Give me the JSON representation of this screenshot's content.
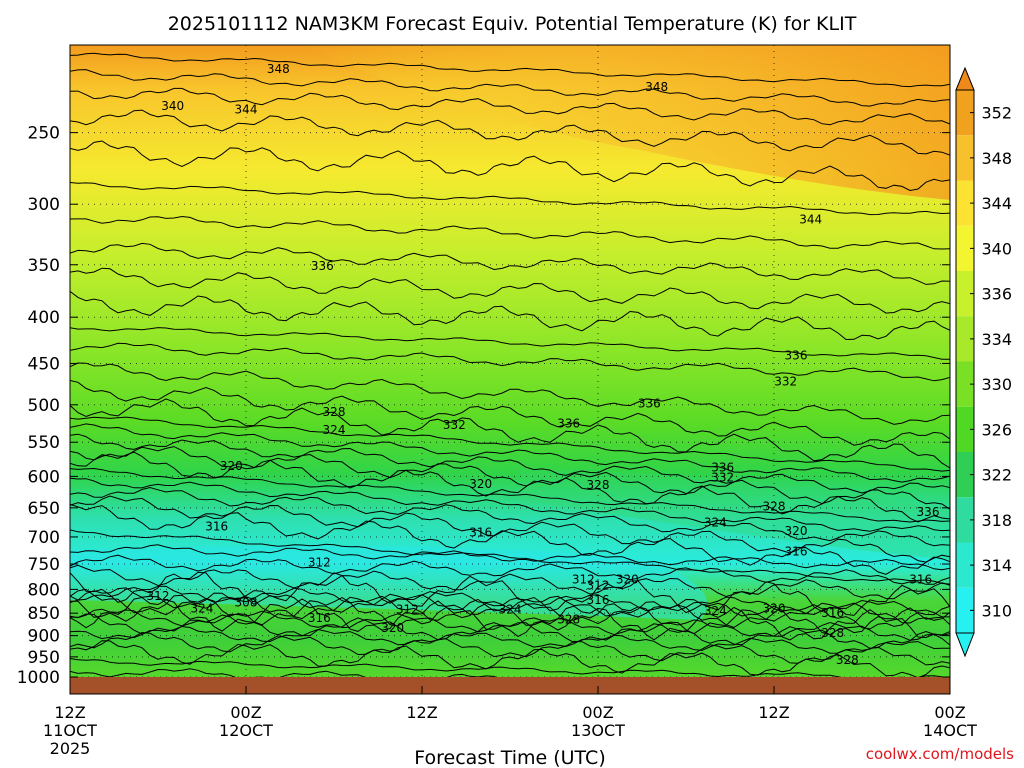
{
  "chart_data": {
    "type": "heatmap",
    "title": "2025101112 NAM3KM Forecast Equiv. Potential Temperature (K) for KLIT",
    "xlabel": "Forecast Time (UTC)",
    "ylabel": "",
    "credit": "coolwx.com/models",
    "y_scale": "log",
    "y_axis_inverted": true,
    "ylim": [
      1000,
      200
    ],
    "y_ticks": [
      250,
      300,
      350,
      400,
      450,
      500,
      550,
      600,
      650,
      700,
      750,
      800,
      850,
      900,
      950,
      1000
    ],
    "x_ticks": [
      {
        "hour": 0,
        "line1": "12Z",
        "line2": "11OCT",
        "line3": "2025"
      },
      {
        "hour": 12,
        "line1": "00Z",
        "line2": "12OCT",
        "line3": ""
      },
      {
        "hour": 24,
        "line1": "12Z",
        "line2": "",
        "line3": ""
      },
      {
        "hour": 36,
        "line1": "00Z",
        "line2": "13OCT",
        "line3": ""
      },
      {
        "hour": 48,
        "line1": "12Z",
        "line2": "",
        "line3": ""
      },
      {
        "hour": 60,
        "line1": "00Z",
        "line2": "14OCT",
        "line3": ""
      }
    ],
    "xlim": [
      0,
      60
    ],
    "grid": true,
    "colorbar": {
      "labels": [
        352,
        348,
        344,
        340,
        336,
        334,
        330,
        326,
        322,
        318,
        314,
        310
      ],
      "colors": [
        "#f0a21e",
        "#f7c12d",
        "#fce233",
        "#f4f531",
        "#c9f02d",
        "#a8e92a",
        "#79e026",
        "#4fd824",
        "#2ecf54",
        "#2fdb9e",
        "#2be8cf",
        "#27f0f0"
      ]
    },
    "contour_labels": [
      {
        "hour": 14.2,
        "p": 212,
        "value": "348"
      },
      {
        "hour": 40.0,
        "p": 222,
        "value": "348"
      },
      {
        "hour": 7.0,
        "p": 233,
        "value": "340"
      },
      {
        "hour": 12.0,
        "p": 235,
        "value": "344"
      },
      {
        "hour": 50.5,
        "p": 311,
        "value": "344"
      },
      {
        "hour": 17.2,
        "p": 350,
        "value": "336"
      },
      {
        "hour": 49.5,
        "p": 440,
        "value": "336"
      },
      {
        "hour": 48.8,
        "p": 470,
        "value": "332"
      },
      {
        "hour": 39.5,
        "p": 497,
        "value": "336"
      },
      {
        "hour": 18.0,
        "p": 508,
        "value": "328"
      },
      {
        "hour": 26.2,
        "p": 525,
        "value": "332"
      },
      {
        "hour": 34.0,
        "p": 523,
        "value": "336"
      },
      {
        "hour": 18.0,
        "p": 532,
        "value": "324"
      },
      {
        "hour": 11.0,
        "p": 583,
        "value": "320"
      },
      {
        "hour": 44.5,
        "p": 585,
        "value": "336"
      },
      {
        "hour": 44.5,
        "p": 600,
        "value": "332"
      },
      {
        "hour": 28.0,
        "p": 610,
        "value": "320"
      },
      {
        "hour": 36.0,
        "p": 612,
        "value": "328"
      },
      {
        "hour": 48.0,
        "p": 646,
        "value": "328"
      },
      {
        "hour": 58.5,
        "p": 655,
        "value": "336"
      },
      {
        "hour": 44.0,
        "p": 673,
        "value": "324"
      },
      {
        "hour": 49.5,
        "p": 688,
        "value": "320"
      },
      {
        "hour": 10.0,
        "p": 680,
        "value": "316"
      },
      {
        "hour": 28.0,
        "p": 690,
        "value": "316"
      },
      {
        "hour": 49.5,
        "p": 725,
        "value": "316"
      },
      {
        "hour": 17.0,
        "p": 745,
        "value": "312"
      },
      {
        "hour": 35.0,
        "p": 778,
        "value": "312"
      },
      {
        "hour": 36.0,
        "p": 790,
        "value": "312"
      },
      {
        "hour": 38.0,
        "p": 778,
        "value": "320"
      },
      {
        "hour": 58.0,
        "p": 778,
        "value": "316"
      },
      {
        "hour": 6.0,
        "p": 812,
        "value": "312"
      },
      {
        "hour": 12.0,
        "p": 825,
        "value": "308"
      },
      {
        "hour": 36.0,
        "p": 820,
        "value": "316"
      },
      {
        "hour": 9.0,
        "p": 838,
        "value": "324"
      },
      {
        "hour": 23.0,
        "p": 840,
        "value": "312"
      },
      {
        "hour": 30.0,
        "p": 840,
        "value": "324"
      },
      {
        "hour": 44.0,
        "p": 843,
        "value": "324"
      },
      {
        "hour": 48.0,
        "p": 838,
        "value": "320"
      },
      {
        "hour": 52.0,
        "p": 847,
        "value": "316"
      },
      {
        "hour": 17.0,
        "p": 858,
        "value": "316"
      },
      {
        "hour": 34.0,
        "p": 862,
        "value": "328"
      },
      {
        "hour": 22.0,
        "p": 880,
        "value": "320"
      },
      {
        "hour": 52.0,
        "p": 892,
        "value": "328"
      },
      {
        "hour": 53.0,
        "p": 955,
        "value": "328"
      }
    ]
  }
}
